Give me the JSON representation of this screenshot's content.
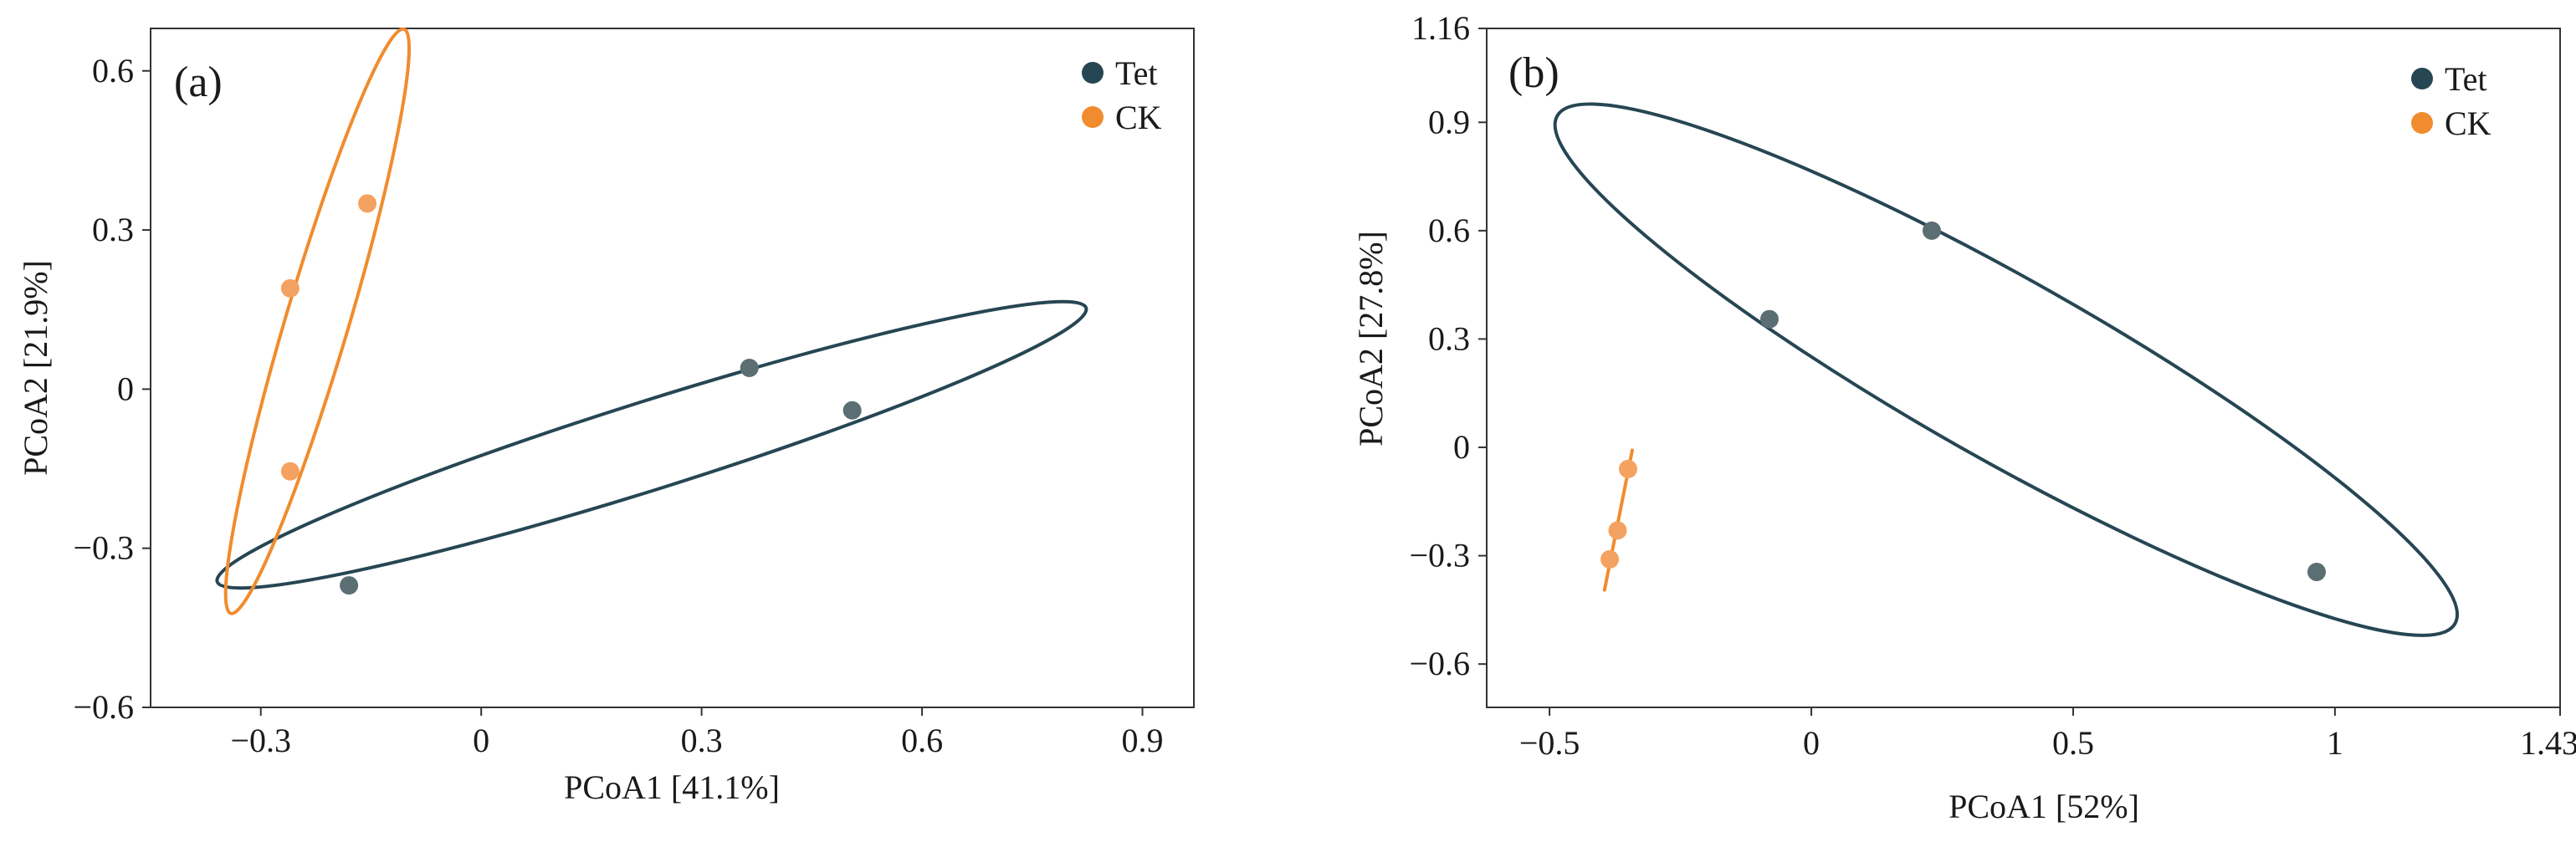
{
  "colors": {
    "Tet": "#264653",
    "CK": "#f4a261",
    "CK_line": "#f08c2e",
    "Tet_point": "#5a6e73"
  },
  "chart_data": [
    {
      "type": "scatter",
      "panel_label": "(a)",
      "xlabel": "PCoA1 [41.1%]",
      "ylabel": "PCoA2 [21.9%]",
      "xlim": [
        -0.45,
        0.97
      ],
      "ylim": [
        -0.6,
        0.68
      ],
      "xticks": [
        -0.3,
        0,
        0.3,
        0.6,
        0.9
      ],
      "xtick_labels": [
        "−0.3",
        "0",
        "0.3",
        "0.6",
        "0.9"
      ],
      "yticks": [
        -0.6,
        -0.3,
        0,
        0.3,
        0.6
      ],
      "ytick_labels": [
        "−0.6",
        "−0.3",
        "0",
        "0.3",
        "0.6"
      ],
      "legend": [
        "Tet",
        "CK"
      ],
      "series": [
        {
          "name": "Tet",
          "points": [
            [
              -0.18,
              -0.37
            ],
            [
              0.365,
              0.04
            ],
            [
              0.505,
              -0.04
            ]
          ],
          "ellipse": {
            "cx": 0.232,
            "cy": -0.105,
            "rx": 0.62,
            "ry": 0.06,
            "angle_deg": 17.5
          }
        },
        {
          "name": "CK",
          "points": [
            [
              -0.26,
              0.19
            ],
            [
              -0.155,
              0.35
            ],
            [
              -0.26,
              -0.155
            ]
          ],
          "ellipse": {
            "cx": -0.223,
            "cy": 0.128,
            "rx": 0.415,
            "ry": 0.043,
            "angle_deg": 73.5
          }
        }
      ]
    },
    {
      "type": "scatter",
      "panel_label": "(b)",
      "xlabel": "PCoA1 [52%]",
      "ylabel": "PCoA2 [27.8%]",
      "xlim": [
        -0.62,
        1.43
      ],
      "ylim": [
        -0.72,
        1.16
      ],
      "xticks": [
        -0.5,
        0,
        0.5,
        1,
        1.43
      ],
      "xtick_labels": [
        "−0.5",
        "0",
        "0.5",
        "1",
        "1.43"
      ],
      "yticks": [
        -0.6,
        -0.3,
        0,
        0.3,
        0.6,
        0.9,
        1.16
      ],
      "ytick_labels": [
        "−0.6",
        "−0.3",
        "0",
        "0.3",
        "0.6",
        "0.9",
        "1.16"
      ],
      "legend": [
        "Tet",
        "CK"
      ],
      "series": [
        {
          "name": "Tet",
          "points": [
            [
              -0.08,
              0.355
            ],
            [
              0.23,
              0.6
            ],
            [
              0.965,
              -0.345
            ]
          ],
          "ellipse": {
            "cx": 0.372,
            "cy": 0.215,
            "rx": 0.985,
            "ry": 0.172,
            "angle_deg": -29.5
          }
        },
        {
          "name": "CK",
          "points": [
            [
              -0.35,
              -0.06
            ],
            [
              -0.37,
              -0.23
            ],
            [
              -0.385,
              -0.31
            ]
          ],
          "segment": [
            [
              -0.395,
              -0.395
            ],
            [
              -0.342,
              -0.008
            ]
          ]
        }
      ]
    }
  ]
}
